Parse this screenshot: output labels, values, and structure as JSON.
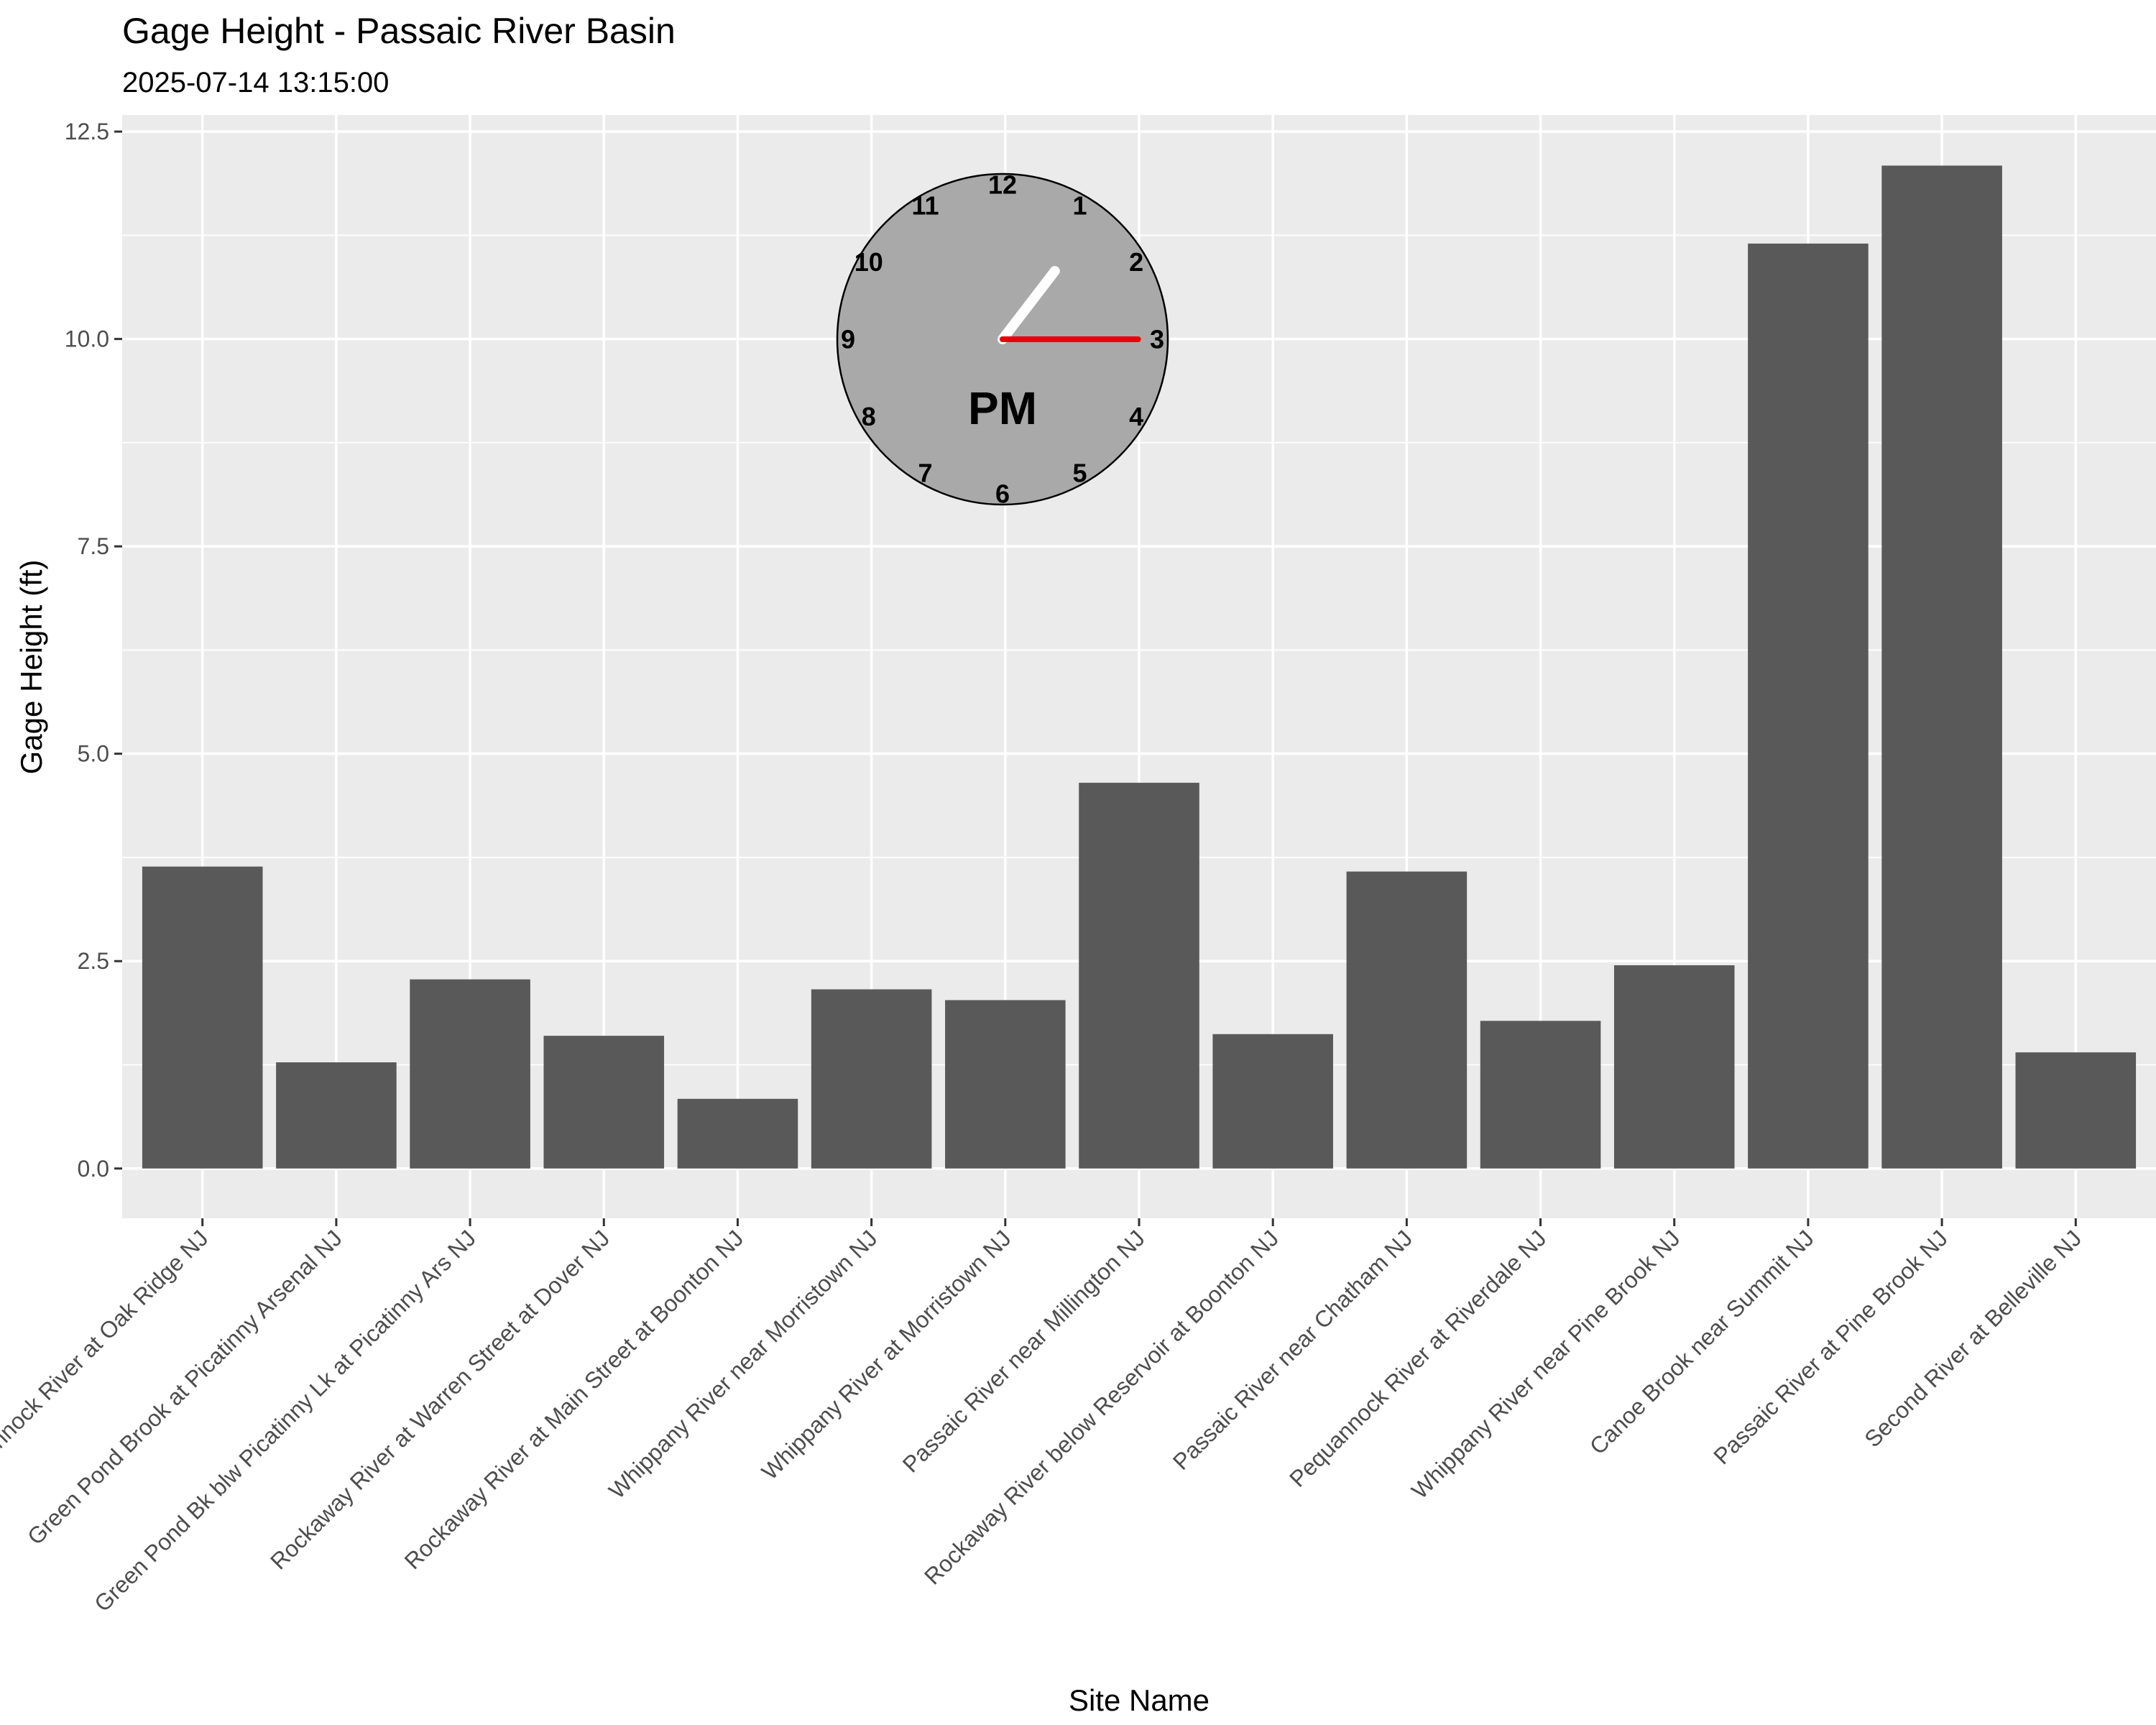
{
  "chart_data": {
    "type": "bar",
    "title": "Gage Height - Passaic River Basin",
    "subtitle": "2025-07-14 13:15:00",
    "xlabel": "Site Name",
    "ylabel": "Gage Height (ft)",
    "ylim": [
      -0.6,
      12.7
    ],
    "yticks": [
      0.0,
      2.5,
      5.0,
      7.5,
      10.0,
      12.5
    ],
    "ytick_labels": [
      "0.0",
      "2.5",
      "5.0",
      "7.5",
      "10.0",
      "12.5"
    ],
    "categories": [
      "Pequannock River at Oak Ridge NJ",
      "Green Pond Brook at Picatinny Arsenal NJ",
      "Green Pond Bk blw Picatinny Lk at Picatinny Ars NJ",
      "Rockaway River at Warren Street at Dover NJ",
      "Rockaway River at Main Street at Boonton NJ",
      "Whippany River near Morristown NJ",
      "Whippany River at Morristown NJ",
      "Passaic River near Millington NJ",
      "Rockaway River below Reservoir at Boonton NJ",
      "Passaic River near Chatham NJ",
      "Pequannock River at Riverdale NJ",
      "Whippany River near Pine Brook NJ",
      "Canoe Brook near Summit NJ",
      "Passaic River at Pine Brook NJ",
      "Second River at Belleville NJ"
    ],
    "values": [
      3.64,
      1.28,
      2.28,
      1.6,
      0.84,
      2.16,
      2.03,
      4.65,
      1.62,
      3.58,
      1.78,
      2.45,
      11.15,
      12.09,
      1.4
    ],
    "grid": true,
    "colors": {
      "bar": "#595959",
      "panel": "#ebebeb",
      "grid": "#ffffff",
      "clock_face": "#a9a9a9",
      "hour_hand": "#ffffff",
      "minute_hand": "#ee0000"
    },
    "clock": {
      "numbers": [
        "12",
        "1",
        "2",
        "3",
        "4",
        "5",
        "6",
        "7",
        "8",
        "9",
        "10",
        "11"
      ],
      "period": "PM",
      "hour": 1,
      "minute": 15
    }
  }
}
